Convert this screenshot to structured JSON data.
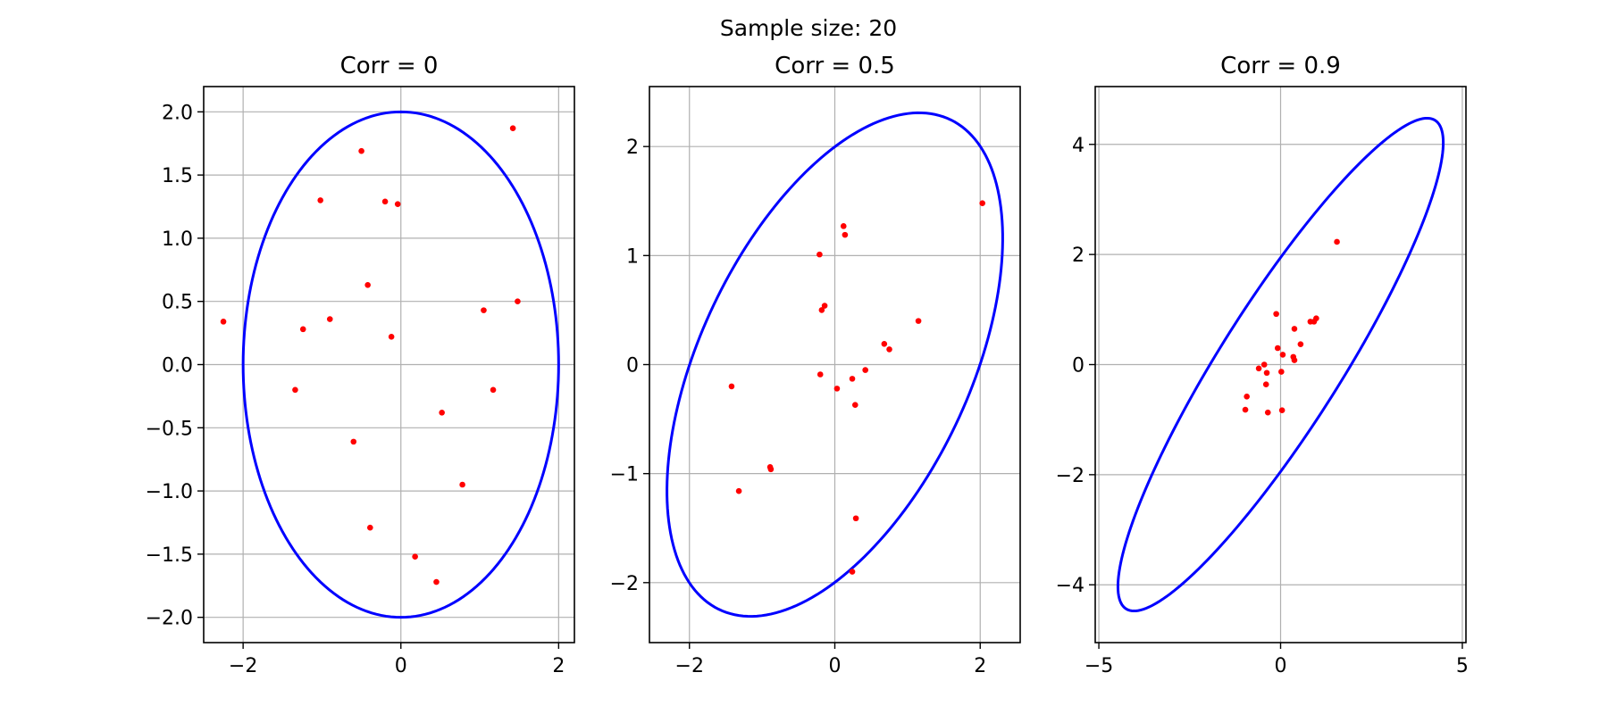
{
  "figure": {
    "suptitle": "Sample size: 20"
  },
  "colors": {
    "ellipse": "#0000ff",
    "points": "#ff0000",
    "grid": "#b0b0b0",
    "axes": "#000000"
  },
  "chart_data": [
    {
      "type": "scatter",
      "title": "Corr = 0",
      "xlabel": "",
      "ylabel": "",
      "xlim": [
        -2.5,
        2.2
      ],
      "ylim": [
        -2.2,
        2.2
      ],
      "xticks": [
        -2,
        0,
        2
      ],
      "xtick_labels": [
        "−2",
        "0",
        "2"
      ],
      "yticks": [
        -2.0,
        -1.5,
        -1.0,
        -0.5,
        0.0,
        0.5,
        1.0,
        1.5,
        2.0
      ],
      "ytick_labels": [
        "−2.0",
        "−1.5",
        "−1.0",
        "−0.5",
        "0.0",
        "0.5",
        "1.0",
        "1.5",
        "2.0"
      ],
      "grid": true,
      "ellipse": {
        "center": [
          0,
          0
        ],
        "semi_axes": [
          2.0,
          2.0
        ],
        "angle_deg": 0
      },
      "points": [
        [
          -2.25,
          0.34
        ],
        [
          1.42,
          1.87
        ],
        [
          -0.5,
          1.69
        ],
        [
          -1.02,
          1.3
        ],
        [
          -0.2,
          1.29
        ],
        [
          -0.04,
          1.27
        ],
        [
          -0.42,
          0.63
        ],
        [
          1.05,
          0.43
        ],
        [
          1.48,
          0.5
        ],
        [
          -1.24,
          0.28
        ],
        [
          -0.9,
          0.36
        ],
        [
          -0.12,
          0.22
        ],
        [
          -1.34,
          -0.2
        ],
        [
          1.17,
          -0.2
        ],
        [
          0.52,
          -0.38
        ],
        [
          -0.6,
          -0.61
        ],
        [
          0.78,
          -0.95
        ],
        [
          -0.39,
          -1.29
        ],
        [
          0.18,
          -1.52
        ],
        [
          0.45,
          -1.72
        ]
      ]
    },
    {
      "type": "scatter",
      "title": "Corr = 0.5",
      "xlabel": "",
      "ylabel": "",
      "xlim": [
        -2.55,
        2.55
      ],
      "ylim": [
        -2.55,
        2.55
      ],
      "xticks": [
        -2,
        0,
        2
      ],
      "xtick_labels": [
        "−2",
        "0",
        "2"
      ],
      "yticks": [
        -2,
        -1,
        0,
        1,
        2
      ],
      "ytick_labels": [
        "−2",
        "−1",
        "0",
        "1",
        "2"
      ],
      "grid": true,
      "ellipse": {
        "center": [
          0,
          0
        ],
        "semi_axes": [
          2.83,
          1.63
        ],
        "angle_deg": 45
      },
      "points": [
        [
          2.03,
          1.48
        ],
        [
          0.12,
          1.27
        ],
        [
          0.14,
          1.19
        ],
        [
          -0.21,
          1.01
        ],
        [
          -0.14,
          0.54
        ],
        [
          -0.18,
          0.5
        ],
        [
          1.15,
          0.4
        ],
        [
          0.68,
          0.19
        ],
        [
          0.75,
          0.14
        ],
        [
          0.42,
          -0.05
        ],
        [
          -0.2,
          -0.09
        ],
        [
          0.24,
          -0.13
        ],
        [
          0.03,
          -0.22
        ],
        [
          -1.42,
          -0.2
        ],
        [
          0.28,
          -0.37
        ],
        [
          -0.89,
          -0.94
        ],
        [
          -0.88,
          -0.96
        ],
        [
          -1.32,
          -1.16
        ],
        [
          0.29,
          -1.41
        ],
        [
          0.24,
          -1.9
        ]
      ]
    },
    {
      "type": "scatter",
      "title": "Corr = 0.9",
      "xlabel": "",
      "ylabel": "",
      "xlim": [
        -5.1,
        5.1
      ],
      "ylim": [
        -5.05,
        5.05
      ],
      "xticks": [
        -5,
        0,
        5
      ],
      "xtick_labels": [
        "−5",
        "0",
        "5"
      ],
      "yticks": [
        -4,
        -2,
        0,
        2,
        4
      ],
      "ytick_labels": [
        "−4",
        "−2",
        "0",
        "2",
        "4"
      ],
      "grid": true,
      "ellipse": {
        "center": [
          0,
          0
        ],
        "semi_axes": [
          6.17,
          1.41
        ],
        "angle_deg": 45
      },
      "points": [
        [
          1.55,
          2.23
        ],
        [
          -0.12,
          0.92
        ],
        [
          0.98,
          0.84
        ],
        [
          0.82,
          0.78
        ],
        [
          0.92,
          0.78
        ],
        [
          0.38,
          0.65
        ],
        [
          0.55,
          0.37
        ],
        [
          -0.08,
          0.3
        ],
        [
          0.06,
          0.18
        ],
        [
          0.35,
          0.14
        ],
        [
          0.38,
          0.08
        ],
        [
          -0.45,
          0.0
        ],
        [
          -0.6,
          -0.07
        ],
        [
          -0.38,
          -0.15
        ],
        [
          0.02,
          -0.13
        ],
        [
          -0.4,
          -0.36
        ],
        [
          -0.93,
          -0.58
        ],
        [
          -0.97,
          -0.82
        ],
        [
          0.04,
          -0.83
        ],
        [
          -0.35,
          -0.87
        ]
      ]
    }
  ]
}
